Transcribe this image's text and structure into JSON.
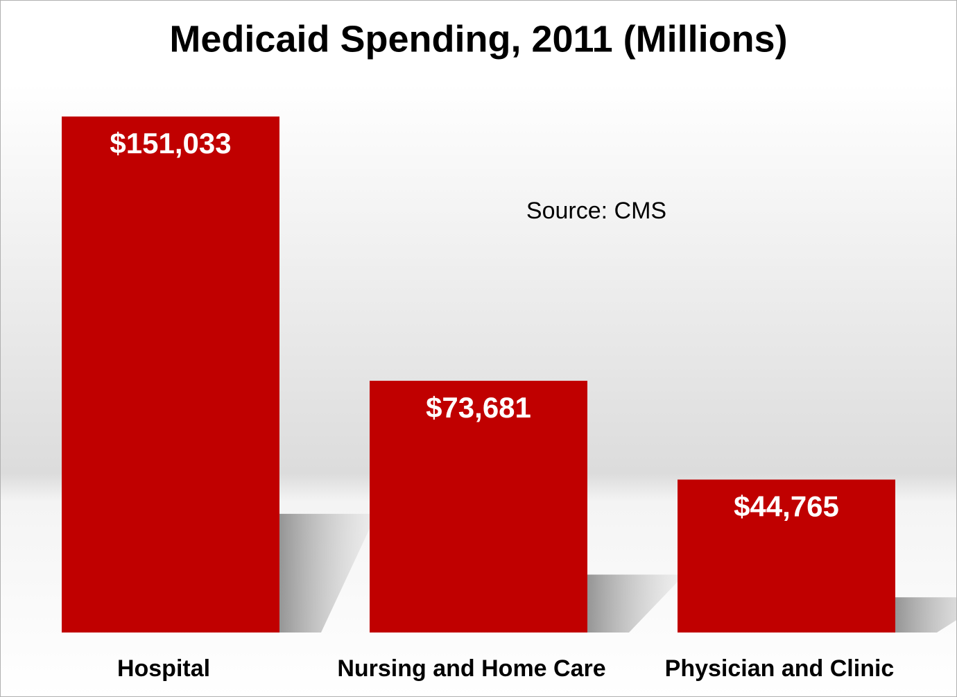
{
  "chart_data": {
    "type": "bar",
    "title": "Medicaid Spending, 2011 (Millions)",
    "annotation": "Source: CMS",
    "categories": [
      "Hospital",
      "Nursing and Home Care",
      "Physician and Clinic"
    ],
    "values": [
      151033,
      73681,
      44765
    ],
    "value_labels": [
      "$151,033",
      "$73,681",
      "$44,765"
    ],
    "color": "#c00000"
  }
}
